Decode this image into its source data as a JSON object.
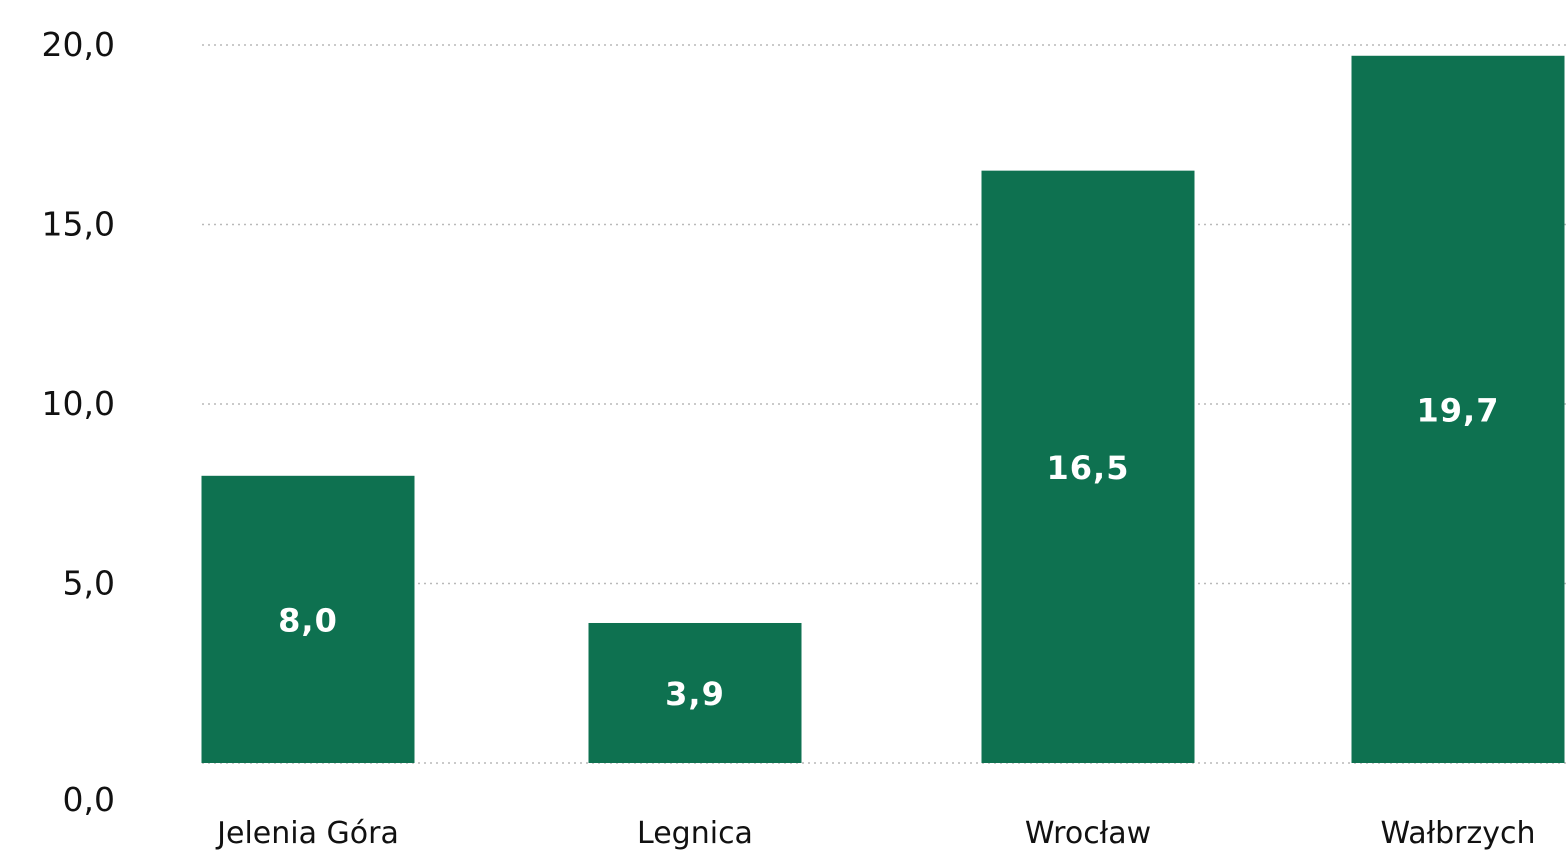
{
  "chart_data": {
    "type": "bar",
    "categories": [
      "Jelenia Góra",
      "Legnica",
      "Wrocław",
      "Wałbrzych"
    ],
    "values": [
      8.0,
      3.9,
      16.5,
      19.7
    ],
    "value_labels": [
      "8,0",
      "3,9",
      "16,5",
      "19,7"
    ],
    "y_ticks": [
      0,
      5,
      10,
      15,
      20
    ],
    "y_tick_labels": [
      "0,0",
      "5,0",
      "10,0",
      "15,0",
      "20,0"
    ],
    "ylim": [
      0,
      20
    ],
    "grid": true,
    "colors": {
      "bar": "#0e7150",
      "grid": "#b9b9b9"
    }
  }
}
